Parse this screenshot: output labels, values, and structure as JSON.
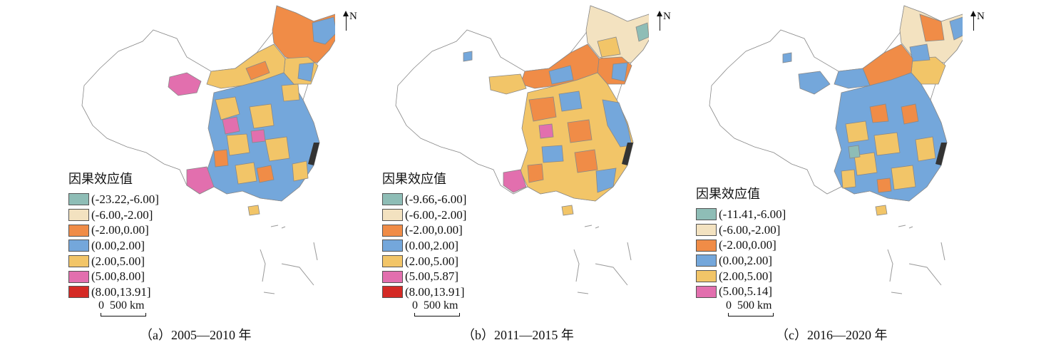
{
  "north_label": "N",
  "legend_title": "因果效应值",
  "scale_text": "0  500 km",
  "colors": {
    "c1": "#8ebdb6",
    "c2": "#f3e2c0",
    "c3": "#f08c47",
    "c4": "#74a7db",
    "c5": "#f2c568",
    "c6": "#e26fae",
    "c7": "#d42a25"
  },
  "panels": [
    {
      "caption": "（a）2005—2010 年",
      "legend": [
        {
          "label": "(-23.22,-6.00]",
          "color": "#8ebdb6"
        },
        {
          "label": "(-6.00,-2.00]",
          "color": "#f3e2c0"
        },
        {
          "label": "(-2.00,0.00]",
          "color": "#f08c47"
        },
        {
          "label": "(0.00,2.00]",
          "color": "#74a7db"
        },
        {
          "label": "(2.00,5.00]",
          "color": "#f2c568"
        },
        {
          "label": "(5.00,8.00]",
          "color": "#e26fae"
        },
        {
          "label": "(8.00,13.91]",
          "color": "#d42a25"
        }
      ]
    },
    {
      "caption": "（b）2011—2015 年",
      "legend": [
        {
          "label": "(-9.66,-6.00]",
          "color": "#8ebdb6"
        },
        {
          "label": "(-6.00,-2.00]",
          "color": "#f3e2c0"
        },
        {
          "label": "(-2.00,0.00]",
          "color": "#f08c47"
        },
        {
          "label": "(0.00,2.00]",
          "color": "#74a7db"
        },
        {
          "label": "(2.00,5.00]",
          "color": "#f2c568"
        },
        {
          "label": "(5.00,5.87]",
          "color": "#e26fae"
        },
        {
          "label": "(8.00,13.91]",
          "color": "#d42a25"
        }
      ]
    },
    {
      "caption": "（c）2016—2020 年",
      "legend": [
        {
          "label": "(-11.41,-6.00]",
          "color": "#8ebdb6"
        },
        {
          "label": "(-6.00,-2.00]",
          "color": "#f3e2c0"
        },
        {
          "label": "(-2.00,0.00]",
          "color": "#f08c47"
        },
        {
          "label": "(0.00,2.00]",
          "color": "#74a7db"
        },
        {
          "label": "(2.00,5.00]",
          "color": "#f2c568"
        },
        {
          "label": "(5.00,5.14]",
          "color": "#e26fae"
        }
      ]
    }
  ]
}
